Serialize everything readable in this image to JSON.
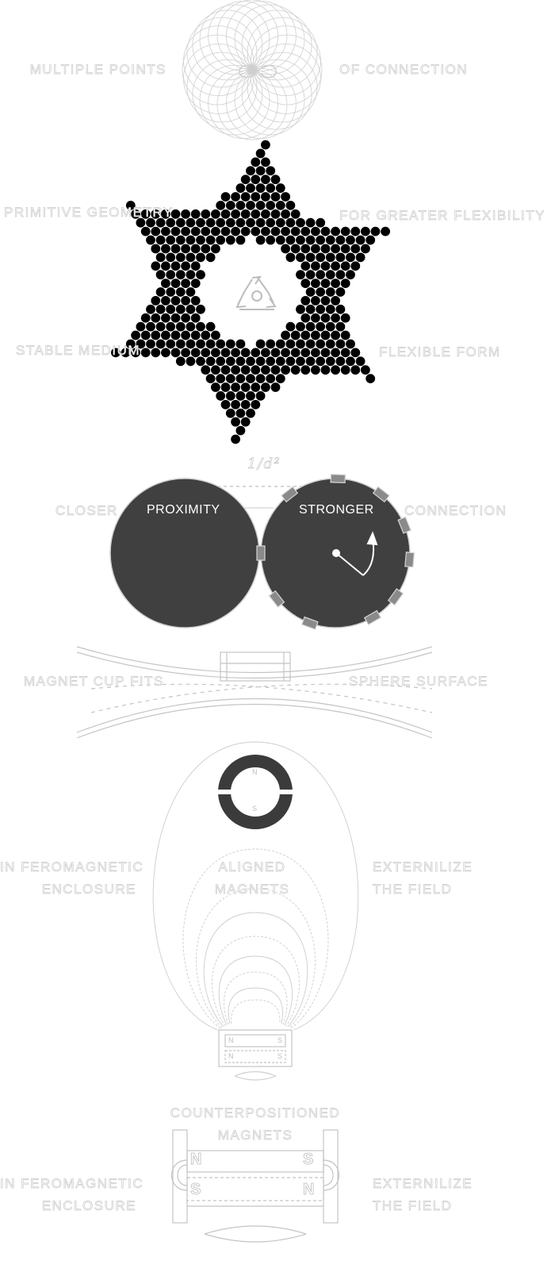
{
  "labels": {
    "multiple_points": "MULTIPLE POINTS",
    "of_connection": "OF CONNECTION",
    "primitive_geometry": "PRIMITIVE GEOMETRY",
    "greater_flexibility": "FOR GREATER FLEXIBILITY",
    "stable_medium": "STABLE MEDIUM",
    "flexible_form": "FLEXIBLE FORM",
    "inverse_square": "1/d²",
    "closer": "CLOSER",
    "proximity": "PROXIMITY",
    "stronger": "STRONGER",
    "connection": "CONNECTION",
    "magnet_cup_fits": "MAGNET CUP FITS",
    "sphere_surface": "SPHERE SURFACE",
    "ring_north": "N",
    "ring_south": "S",
    "in_feromagnetic_1": "IN FEROMAGNETIC",
    "enclosure_1": "ENCLOSURE",
    "aligned": "ALIGNED",
    "magnets_1": "MAGNETS",
    "externilize_1": "EXTERNILIZE",
    "the_field_1": "THE FIELD",
    "small_n_left": "N",
    "small_s_right": "S",
    "small_n_bottom": "N",
    "small_s_bottom": "S",
    "counterpositioned": "COUNTERPOSITIONED",
    "magnets_2": "MAGNETS",
    "big_n_top": "N",
    "big_s_top": "S",
    "big_s_bottom": "S",
    "big_n_bottom": "N",
    "in_feromagnetic_2": "IN FEROMAGNETIC",
    "enclosure_2": "ENCLOSURE",
    "externilize_2": "EXTERNILIZE",
    "the_field_2": "THE FIELD"
  },
  "icons": [
    "infinity-icon",
    "recycle-icon",
    "rotation-arrows-icon"
  ],
  "colors": {
    "dark_fill": "#3b3b3b",
    "outline": "#c9c9c9",
    "sphere": "#404040",
    "dot": "#000000"
  }
}
